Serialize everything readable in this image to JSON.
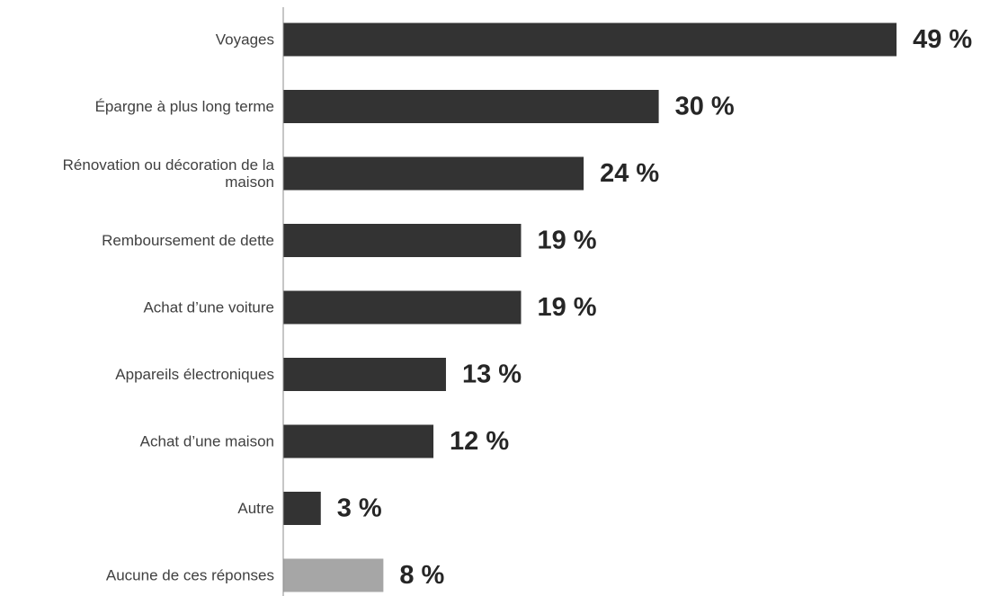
{
  "chart_data": {
    "type": "bar",
    "orientation": "horizontal",
    "categories": [
      "Voyages",
      "Épargne à plus long terme",
      "Rénovation ou décoration de la maison",
      "Remboursement de dette",
      "Achat d’une voiture",
      "Appareils électroniques",
      "Achat d’une maison",
      "Autre",
      "Aucune de ces réponses"
    ],
    "category_lines": [
      [
        "Voyages"
      ],
      [
        "Épargne à plus long terme"
      ],
      [
        "Rénovation ou décoration de la",
        "maison"
      ],
      [
        "Remboursement de dette"
      ],
      [
        "Achat d’une voiture"
      ],
      [
        "Appareils électroniques"
      ],
      [
        "Achat d’une maison"
      ],
      [
        "Autre"
      ],
      [
        "Aucune de ces réponses"
      ]
    ],
    "values": [
      49,
      30,
      24,
      19,
      19,
      13,
      12,
      3,
      8
    ],
    "value_labels": [
      "49 %",
      "30 %",
      "24 %",
      "19 %",
      "19 %",
      "13 %",
      "12 %",
      "3 %",
      "8 %"
    ],
    "bar_colors": [
      "#333333",
      "#333333",
      "#333333",
      "#333333",
      "#333333",
      "#333333",
      "#333333",
      "#333333",
      "#a6a6a6"
    ],
    "title": "",
    "xlabel": "",
    "ylabel": "",
    "xlim": [
      0,
      49
    ],
    "grid": false,
    "legend": "none"
  }
}
